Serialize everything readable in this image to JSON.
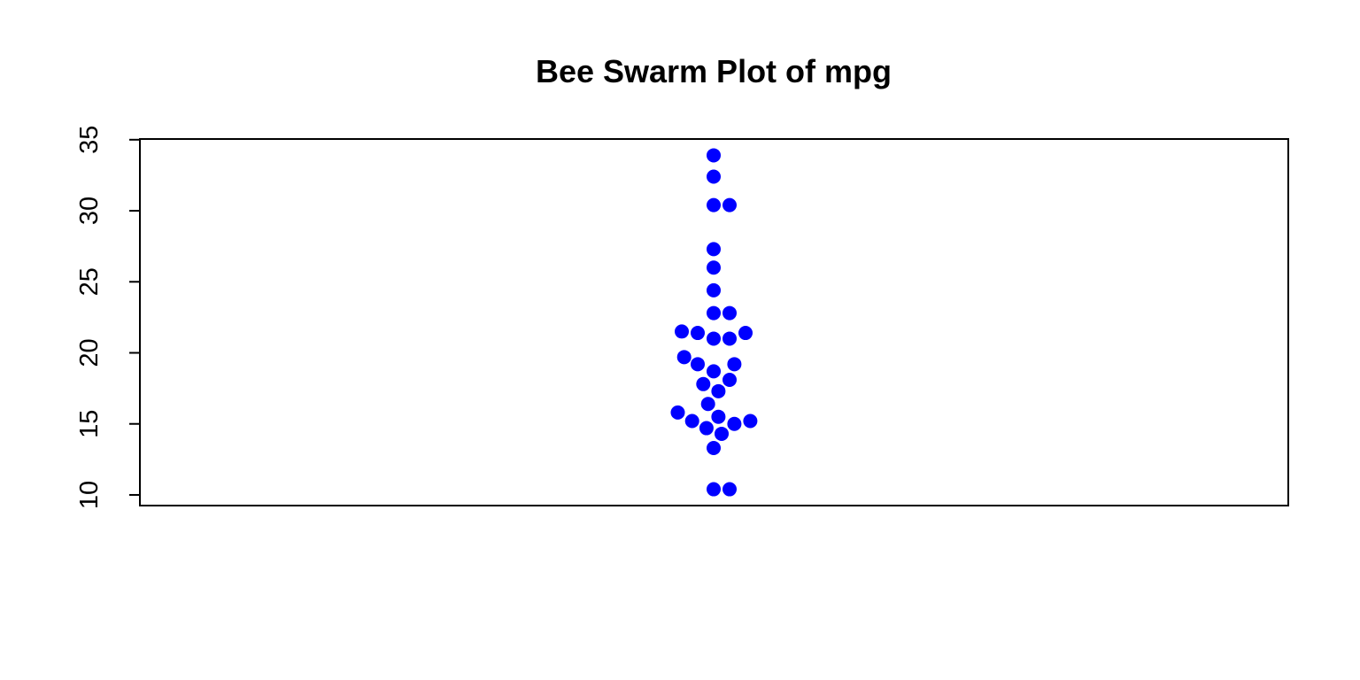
{
  "chart_data": {
    "type": "scatter",
    "subtype": "beeswarm",
    "title": "Bee Swarm Plot of mpg",
    "xlabel": "",
    "ylabel": "",
    "ylim": [
      9.25,
      35.05
    ],
    "yticks": [
      10,
      15,
      20,
      25,
      30,
      35
    ],
    "ytick_labels": [
      "10",
      "15",
      "20",
      "25",
      "30",
      "35"
    ],
    "point_color": "#0000ff",
    "series": [
      {
        "name": "mpg",
        "points": [
          {
            "x": 0,
            "y": 33.9
          },
          {
            "x": 0,
            "y": 32.4
          },
          {
            "x": 0,
            "y": 30.4
          },
          {
            "x": 1,
            "y": 30.4
          },
          {
            "x": 0,
            "y": 27.3
          },
          {
            "x": 0,
            "y": 26.0
          },
          {
            "x": 0,
            "y": 24.4
          },
          {
            "x": 0,
            "y": 22.8
          },
          {
            "x": 1,
            "y": 22.8
          },
          {
            "x": -2,
            "y": 21.5
          },
          {
            "x": -1,
            "y": 21.4
          },
          {
            "x": 0,
            "y": 21.0
          },
          {
            "x": 1,
            "y": 21.0
          },
          {
            "x": 2,
            "y": 21.4
          },
          {
            "x": -1.85,
            "y": 19.7
          },
          {
            "x": -1,
            "y": 19.2
          },
          {
            "x": 0,
            "y": 18.7
          },
          {
            "x": 1.3,
            "y": 19.2
          },
          {
            "x": -0.65,
            "y": 17.8
          },
          {
            "x": 1,
            "y": 18.1
          },
          {
            "x": 0.3,
            "y": 17.3
          },
          {
            "x": -0.35,
            "y": 16.4
          },
          {
            "x": -2.25,
            "y": 15.8
          },
          {
            "x": -1.35,
            "y": 15.2
          },
          {
            "x": 0.3,
            "y": 15.5
          },
          {
            "x": -0.45,
            "y": 14.7
          },
          {
            "x": 1.3,
            "y": 15.0
          },
          {
            "x": 2.3,
            "y": 15.2
          },
          {
            "x": 0.5,
            "y": 14.3
          },
          {
            "x": 0,
            "y": 13.3
          },
          {
            "x": 0,
            "y": 10.4
          },
          {
            "x": 1,
            "y": 10.4
          }
        ]
      }
    ]
  }
}
